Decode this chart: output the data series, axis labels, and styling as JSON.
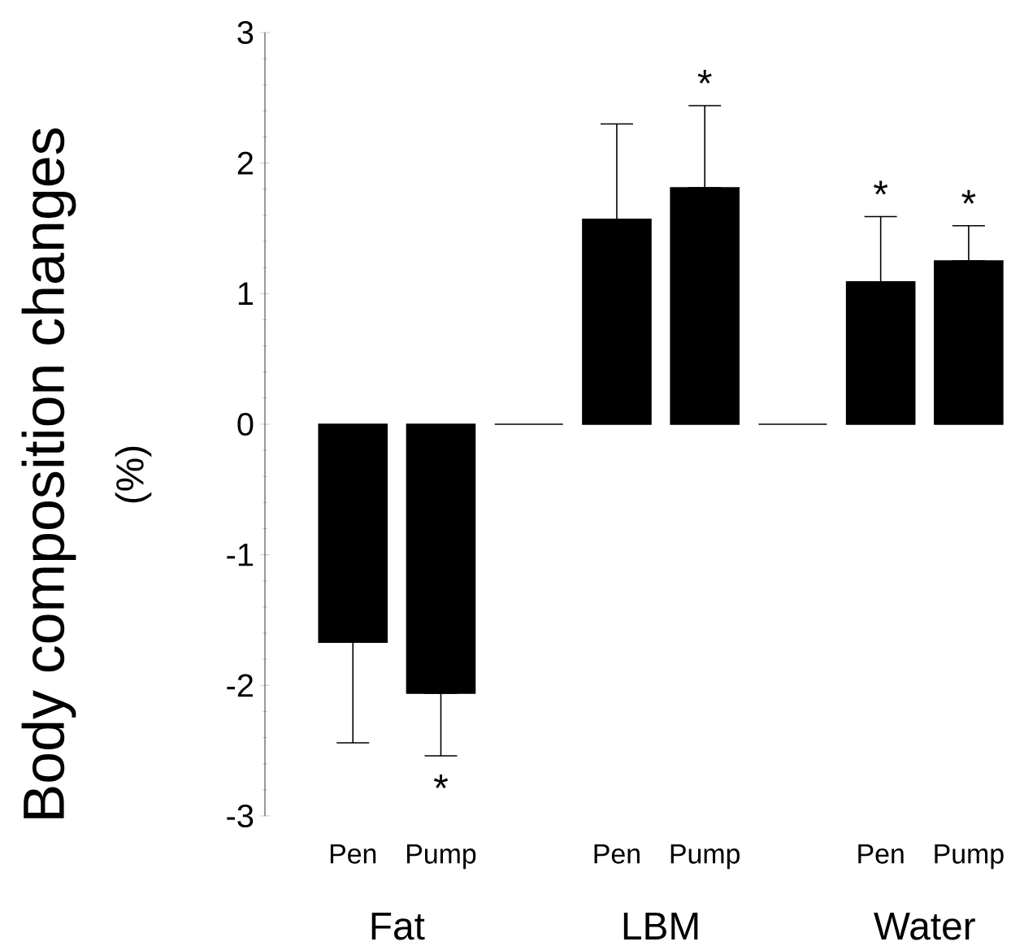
{
  "chart_data": {
    "type": "bar",
    "ylabel": "Body composition changes",
    "categories": [
      "Pen",
      "Pump",
      null,
      "Pen",
      "Pump",
      null,
      "Pen",
      "Pump"
    ],
    "values": [
      -1.67,
      -2.06,
      0,
      1.57,
      1.81,
      0,
      1.09,
      1.25
    ],
    "errors": [
      [
        -2.44,
        -1.67
      ],
      [
        -2.54,
        -2.06
      ],
      null,
      [
        1.57,
        2.3
      ],
      [
        1.81,
        2.44
      ],
      null,
      [
        1.09,
        1.59
      ],
      [
        1.25,
        1.52
      ]
    ],
    "value_labels": [
      null,
      "*",
      null,
      null,
      "*",
      null,
      "*",
      "*"
    ],
    "color": "#000000",
    "ylim": [
      -3,
      3
    ],
    "yticks": [
      -3,
      -2,
      -1,
      0,
      1,
      2,
      3
    ],
    "annotations": [
      "(%)",
      "Fat",
      "LBM",
      "Water"
    ]
  }
}
